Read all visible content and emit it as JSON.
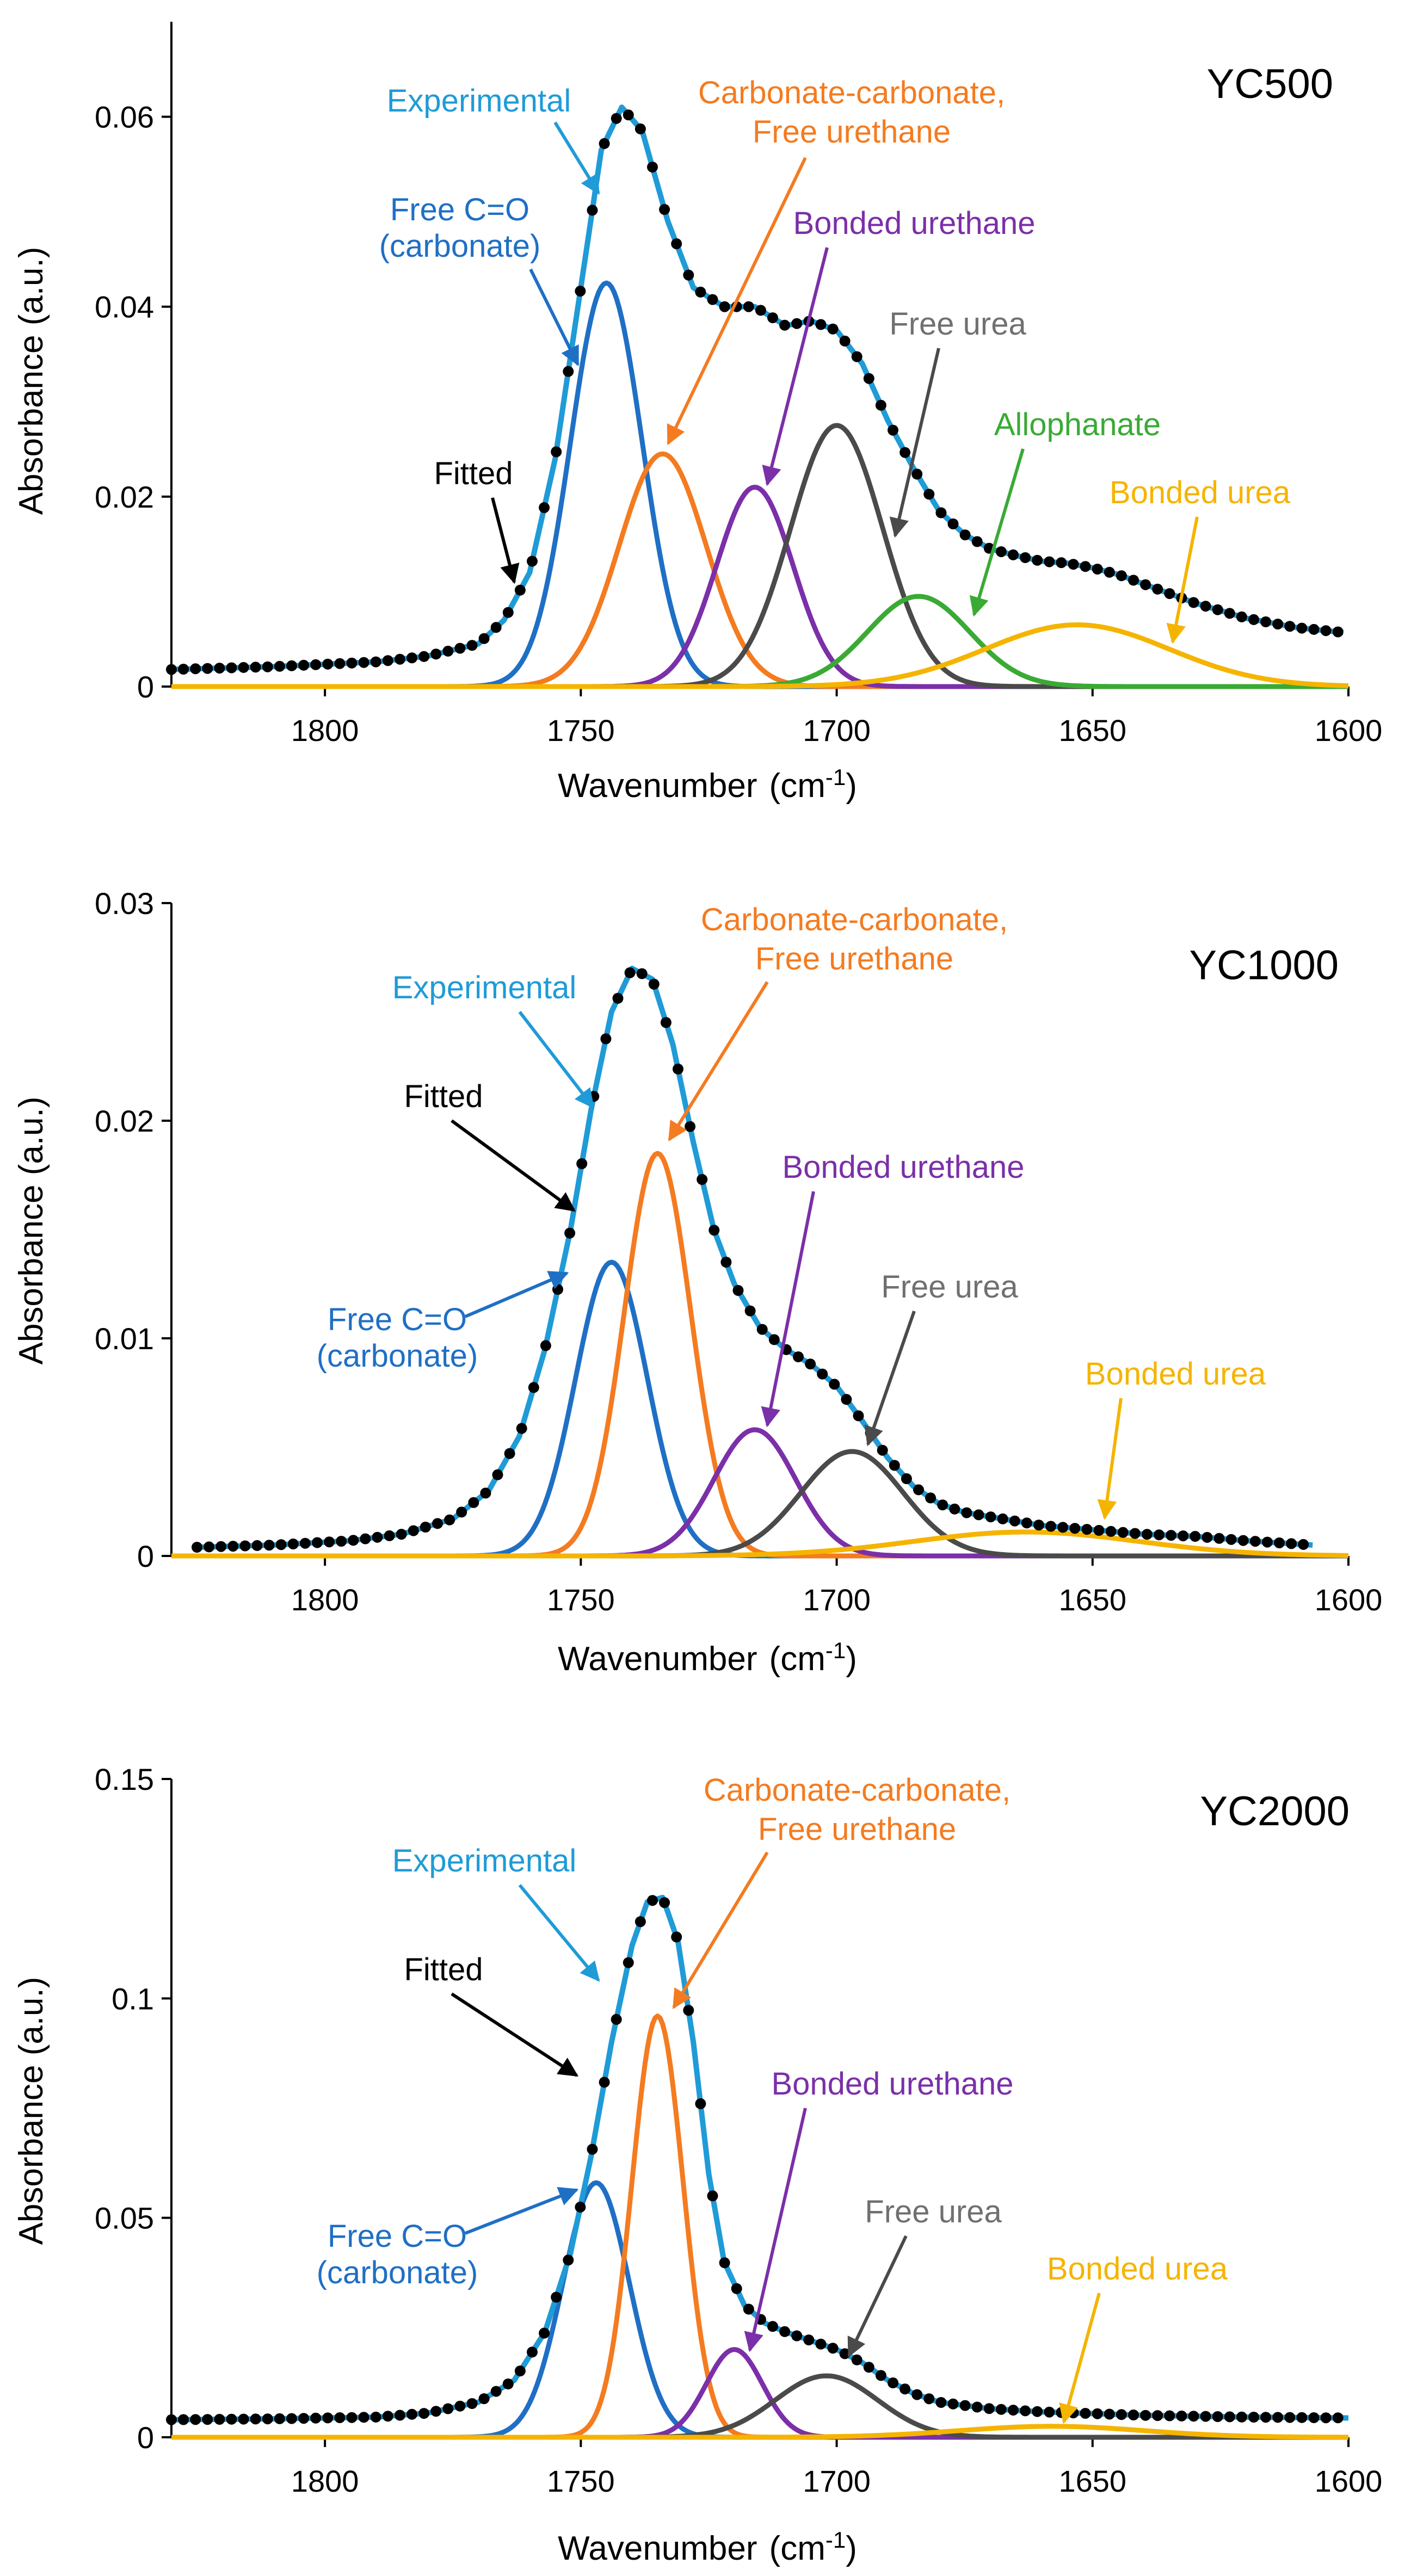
{
  "colors": {
    "experimental": "#1f9bd7",
    "free_co": "#1f6fc5",
    "carbonate": "#f47b20",
    "bonded_urethane": "#7b2fa8",
    "free_urea": "#4a4a4a",
    "allophanate": "#3aaa35",
    "bonded_urea": "#f5b400",
    "fitted": "#000000"
  },
  "chart_data": [
    {
      "type": "line",
      "title": "YC500",
      "xlabel": "Wavenumber",
      "xunit": "(cm",
      "xunit_sup": "-1",
      "xunit_end": ")",
      "ylabel": "Absorbance  (a.u.)",
      "xlim": [
        1830,
        1600
      ],
      "ylim": [
        0,
        0.07
      ],
      "x_ticks": [
        1800,
        1750,
        1700,
        1650,
        1600
      ],
      "x_tick_labels": [
        "1800",
        "1750",
        "1700",
        "1650",
        "1600"
      ],
      "y_ticks": [
        0,
        0.02,
        0.04,
        0.06
      ],
      "y_tick_labels": [
        "0",
        "0.02",
        "0.04",
        "0.06"
      ],
      "peaks": [
        {
          "name": "Free C=O (carbonate)",
          "key": "free_co",
          "center": 1745,
          "height": 0.0425,
          "sigma": 7.0
        },
        {
          "name": "Carbonate-carbonate, Free urethane",
          "key": "carbonate",
          "center": 1734,
          "height": 0.0245,
          "sigma": 8.5
        },
        {
          "name": "Bonded urethane",
          "key": "bonded_urethane",
          "center": 1716,
          "height": 0.021,
          "sigma": 7.5
        },
        {
          "name": "Free urea",
          "key": "free_urea",
          "center": 1700,
          "height": 0.0275,
          "sigma": 9.0
        },
        {
          "name": "Allophanate",
          "key": "allophanate",
          "center": 1684,
          "height": 0.0095,
          "sigma": 10.0
        },
        {
          "name": "Bonded urea",
          "key": "bonded_urea",
          "center": 1653,
          "height": 0.0065,
          "sigma": 18.0
        }
      ],
      "baseline": 0.0012,
      "baseline_slope": 1.55e-05,
      "experimental_range": [
        1830,
        1601
      ],
      "series": [
        {
          "name": "Experimental",
          "x": [
            1830,
            1810,
            1790,
            1780,
            1770,
            1765,
            1760,
            1755,
            1750,
            1746,
            1742,
            1738,
            1733,
            1728,
            1722,
            1716,
            1710,
            1705,
            1700,
            1695,
            1690,
            1685,
            1680,
            1675,
            1670,
            1665,
            1660,
            1655,
            1650,
            1645,
            1640,
            1635,
            1630,
            1620,
            1610,
            1601
          ],
          "y": [
            0.0018,
            0.0021,
            0.0026,
            0.0032,
            0.0045,
            0.007,
            0.012,
            0.024,
            0.042,
            0.0565,
            0.061,
            0.0585,
            0.049,
            0.042,
            0.04,
            0.04,
            0.038,
            0.0385,
            0.0375,
            0.034,
            0.028,
            0.023,
            0.0185,
            0.016,
            0.0145,
            0.0138,
            0.0132,
            0.013,
            0.0125,
            0.0118,
            0.0108,
            0.0098,
            0.0088,
            0.0072,
            0.0062,
            0.0057
          ]
        }
      ],
      "labels": {
        "experimental": "Experimental",
        "free_co_1": "Free C=O",
        "free_co_2": "(carbonate)",
        "carbonate_1": "Carbonate-carbonate,",
        "carbonate_2": "Free urethane",
        "bonded_urethane": "Bonded  urethane",
        "free_urea": "Free urea",
        "allophanate": "Allophanate",
        "bonded_urea": "Bonded urea",
        "fitted": "Fitted"
      }
    },
    {
      "type": "line",
      "title": "YC1000",
      "xlabel": "Wavenumber",
      "xunit": "(cm",
      "xunit_sup": "-1",
      "xunit_end": ")",
      "ylabel": "Absorbance  (a.u.)",
      "xlim": [
        1830,
        1600
      ],
      "ylim": [
        0,
        0.03
      ],
      "x_ticks": [
        1800,
        1750,
        1700,
        1650,
        1600
      ],
      "x_tick_labels": [
        "1800",
        "1750",
        "1700",
        "1650",
        "1600"
      ],
      "y_ticks": [
        0,
        0.01,
        0.02,
        0.03
      ],
      "y_tick_labels": [
        "0",
        "0.01",
        "0.02",
        "0.03"
      ],
      "peaks": [
        {
          "name": "Free C=O (carbonate)",
          "key": "free_co",
          "center": 1744,
          "height": 0.0135,
          "sigma": 7.0
        },
        {
          "name": "Carbonate-carbonate, Free urethane",
          "key": "carbonate",
          "center": 1735,
          "height": 0.0185,
          "sigma": 6.5
        },
        {
          "name": "Bonded urethane",
          "key": "bonded_urethane",
          "center": 1716,
          "height": 0.0058,
          "sigma": 8.0
        },
        {
          "name": "Free urea",
          "key": "free_urea",
          "center": 1697,
          "height": 0.0048,
          "sigma": 10.0
        },
        {
          "name": "Bonded urea",
          "key": "bonded_urea",
          "center": 1663,
          "height": 0.0011,
          "sigma": 22.0
        }
      ],
      "baseline": 0.0002,
      "baseline_slope": 1e-06,
      "experimental_range": [
        1825,
        1607
      ],
      "series": [
        {
          "name": "Experimental",
          "x": [
            1825,
            1810,
            1795,
            1785,
            1775,
            1768,
            1762,
            1757,
            1752,
            1748,
            1744,
            1740,
            1736,
            1732,
            1728,
            1724,
            1720,
            1715,
            1710,
            1705,
            1700,
            1695,
            1690,
            1685,
            1680,
            1675,
            1670,
            1665,
            1660,
            1650,
            1640,
            1630,
            1620,
            1607
          ],
          "y": [
            0.0004,
            0.0005,
            0.0007,
            0.001,
            0.0017,
            0.003,
            0.0055,
            0.0095,
            0.015,
            0.0205,
            0.025,
            0.027,
            0.0265,
            0.0235,
            0.019,
            0.015,
            0.0125,
            0.0105,
            0.0095,
            0.0088,
            0.0078,
            0.0062,
            0.0045,
            0.0032,
            0.0024,
            0.002,
            0.0018,
            0.0016,
            0.0014,
            0.0012,
            0.001,
            0.0009,
            0.0007,
            0.0005
          ]
        }
      ],
      "labels": {
        "experimental": "Experimental",
        "free_co_1": "Free C=O",
        "free_co_2": "(carbonate)",
        "carbonate_1": "Carbonate-carbonate,",
        "carbonate_2": "Free urethane",
        "bonded_urethane": "Bonded  urethane",
        "free_urea": "Free urea",
        "bonded_urea": "Bonded urea",
        "fitted": "Fitted"
      }
    },
    {
      "type": "line",
      "title": "YC2000",
      "xlabel": "Wavenumber",
      "xunit": "(cm",
      "xunit_sup": "-1",
      "xunit_end": ")",
      "ylabel": "Absorbance  (a.u.)",
      "xlim": [
        1830,
        1600
      ],
      "ylim": [
        0,
        0.15
      ],
      "x_ticks": [
        1800,
        1750,
        1700,
        1650,
        1600
      ],
      "x_tick_labels": [
        "1800",
        "1750",
        "1700",
        "1650",
        "1600"
      ],
      "y_ticks": [
        0,
        0.05,
        0.1,
        0.15
      ],
      "y_tick_labels": [
        "0",
        "0.05",
        "0.1",
        "0.15"
      ],
      "peaks": [
        {
          "name": "Free C=O (carbonate)",
          "key": "free_co",
          "center": 1747,
          "height": 0.058,
          "sigma": 6.5
        },
        {
          "name": "Carbonate-carbonate, Free urethane",
          "key": "carbonate",
          "center": 1735,
          "height": 0.096,
          "sigma": 5.0
        },
        {
          "name": "Bonded urethane",
          "key": "bonded_urethane",
          "center": 1720,
          "height": 0.02,
          "sigma": 5.5
        },
        {
          "name": "Free urea",
          "key": "free_urea",
          "center": 1702,
          "height": 0.014,
          "sigma": 10.0
        },
        {
          "name": "Bonded urea",
          "key": "bonded_urea",
          "center": 1658,
          "height": 0.0025,
          "sigma": 18.0
        }
      ],
      "baseline": 0.0004,
      "baseline_slope": 0.0,
      "experimental_range": [
        1830,
        1600
      ],
      "series": [
        {
          "name": "Experimental",
          "x": [
            1830,
            1810,
            1790,
            1780,
            1770,
            1763,
            1757,
            1752,
            1748,
            1744,
            1740,
            1737,
            1734,
            1731,
            1728,
            1725,
            1722,
            1718,
            1714,
            1710,
            1705,
            1700,
            1695,
            1690,
            1685,
            1680,
            1670,
            1660,
            1650,
            1640,
            1620,
            1600
          ],
          "y": [
            0.004,
            0.0042,
            0.0046,
            0.0055,
            0.008,
            0.013,
            0.024,
            0.042,
            0.064,
            0.09,
            0.112,
            0.122,
            0.123,
            0.113,
            0.09,
            0.06,
            0.04,
            0.03,
            0.026,
            0.024,
            0.022,
            0.02,
            0.017,
            0.013,
            0.01,
            0.008,
            0.0065,
            0.0058,
            0.0054,
            0.005,
            0.0046,
            0.0044
          ]
        }
      ],
      "labels": {
        "experimental": "Experimental",
        "free_co_1": "Free C=O",
        "free_co_2": "(carbonate)",
        "carbonate_1": "Carbonate-carbonate,",
        "carbonate_2": "Free urethane",
        "bonded_urethane": "Bonded  urethane",
        "free_urea": "Free urea",
        "bonded_urea": "Bonded urea",
        "fitted": "Fitted"
      }
    }
  ]
}
